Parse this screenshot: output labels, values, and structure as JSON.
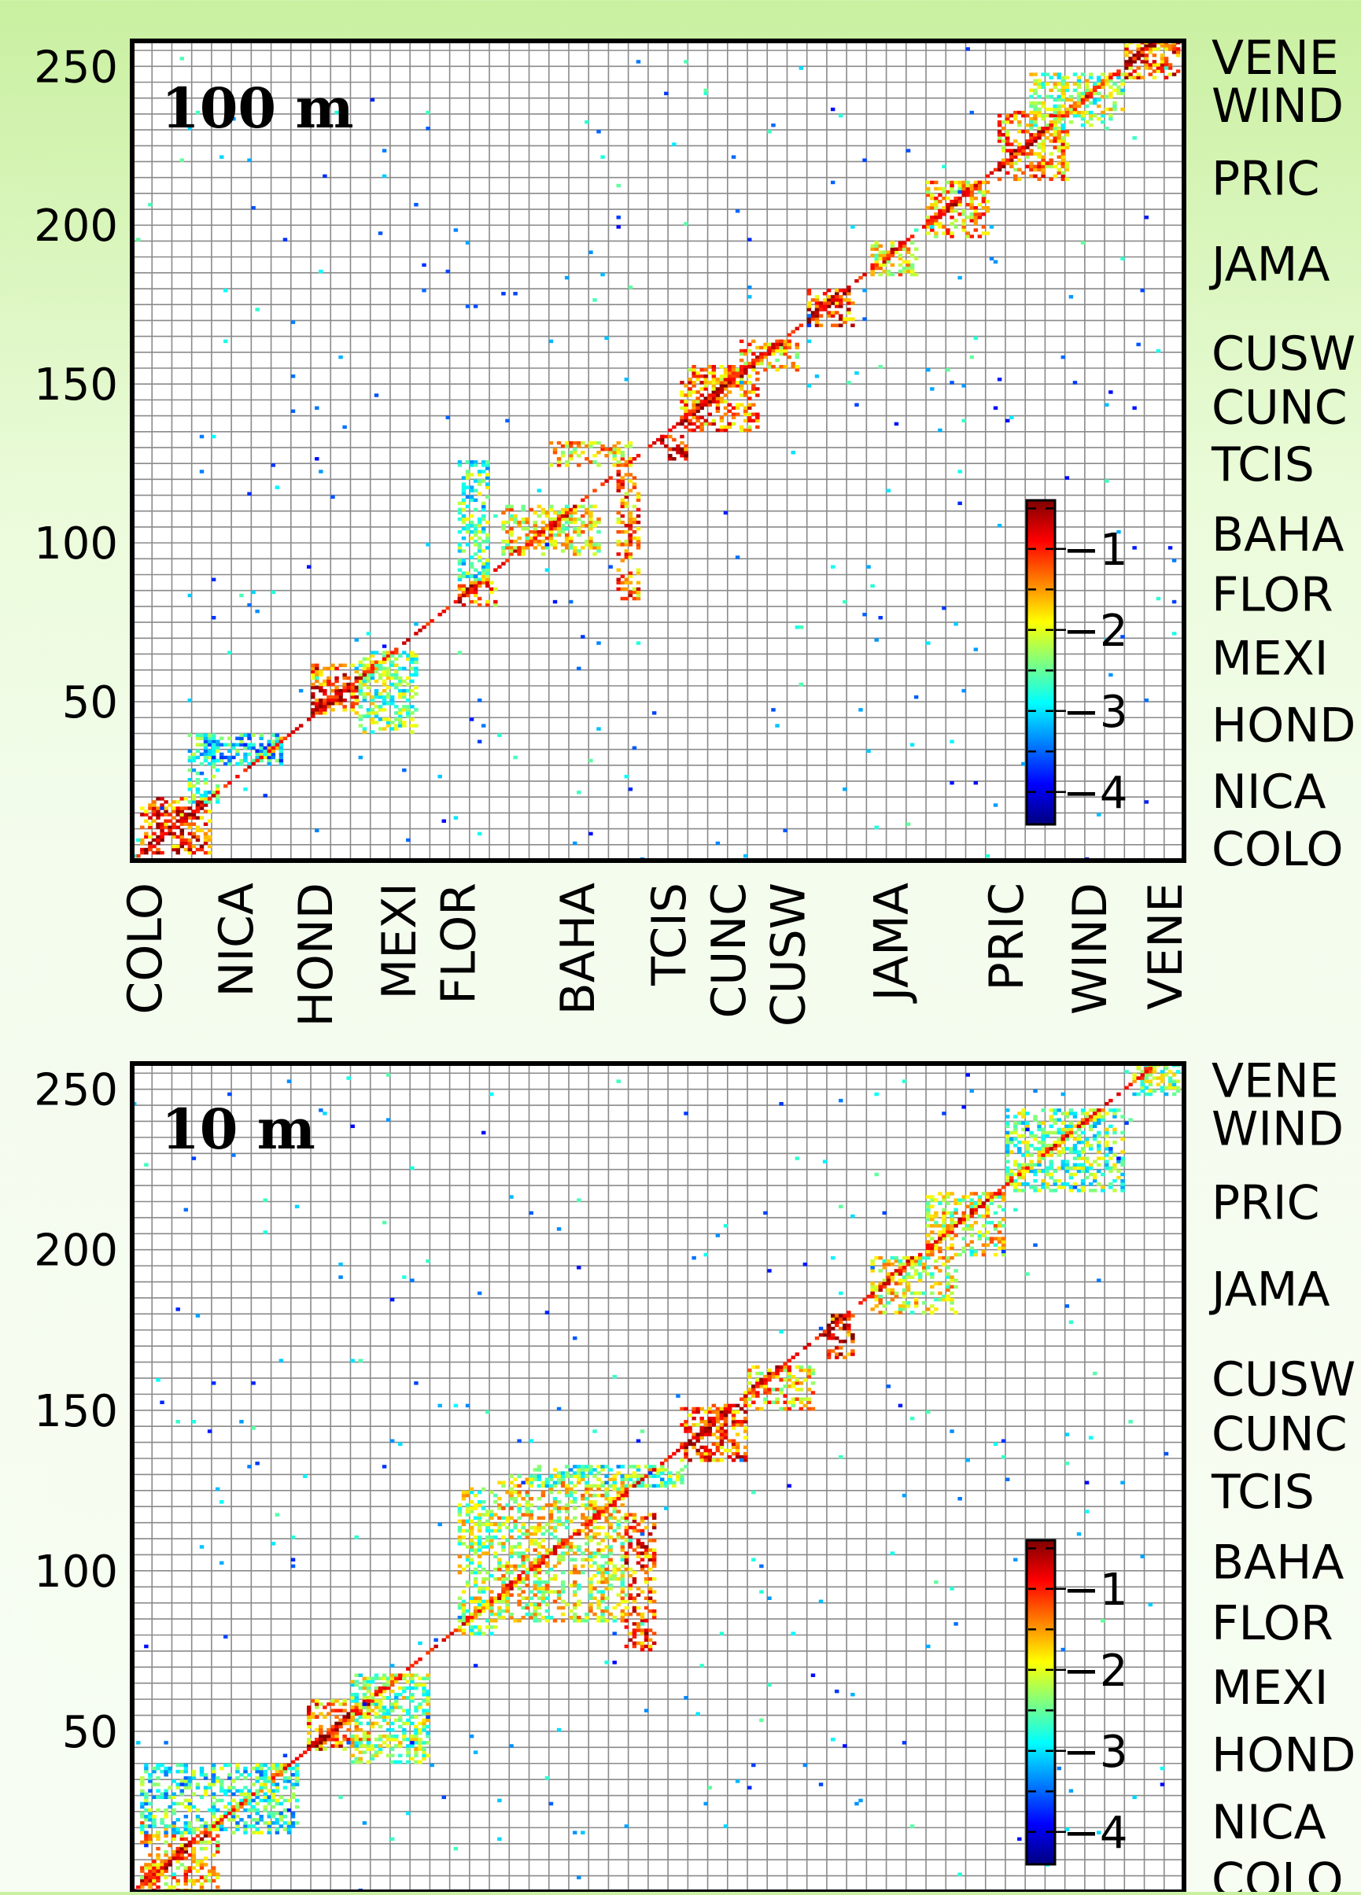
{
  "chart_data": [
    {
      "type": "heatmap",
      "title": "100 m",
      "xlabel": "",
      "ylabel": "",
      "xlim": [
        0,
        265
      ],
      "ylim": [
        0,
        258
      ],
      "yticks": [
        50,
        100,
        150,
        200,
        250
      ],
      "x_regions": [
        {
          "label": "COLO",
          "at": 3
        },
        {
          "label": "NICA",
          "at": 26
        },
        {
          "label": "HOND",
          "at": 46
        },
        {
          "label": "MEXI",
          "at": 67
        },
        {
          "label": "FLOR",
          "at": 82
        },
        {
          "label": "BAHA",
          "at": 112
        },
        {
          "label": "TCIS",
          "at": 135
        },
        {
          "label": "CUNC",
          "at": 150
        },
        {
          "label": "CUSW",
          "at": 165
        },
        {
          "label": "JAMA",
          "at": 191
        },
        {
          "label": "PRIC",
          "at": 220
        },
        {
          "label": "WIND",
          "at": 241
        },
        {
          "label": "VENE",
          "at": 260
        }
      ],
      "y_regions": [
        {
          "label": "VENE",
          "at": 253
        },
        {
          "label": "WIND",
          "at": 238
        },
        {
          "label": "PRIC",
          "at": 215
        },
        {
          "label": "JAMA",
          "at": 188
        },
        {
          "label": "CUSW",
          "at": 160
        },
        {
          "label": "CUNC",
          "at": 143
        },
        {
          "label": "TCIS",
          "at": 125
        },
        {
          "label": "BAHA",
          "at": 103
        },
        {
          "label": "FLOR",
          "at": 84
        },
        {
          "label": "MEXI",
          "at": 64
        },
        {
          "label": "HOND",
          "at": 43
        },
        {
          "label": "NICA",
          "at": 22
        },
        {
          "label": "COLO",
          "at": 4
        }
      ],
      "blocks": [
        {
          "x": [
            2,
            20
          ],
          "y": [
            2,
            20
          ],
          "level": -1.2
        },
        {
          "x": [
            14,
            22
          ],
          "y": [
            18,
            40
          ],
          "level": -2.8
        },
        {
          "x": [
            18,
            38
          ],
          "y": [
            30,
            40
          ],
          "level": -3.0
        },
        {
          "x": [
            45,
            57
          ],
          "y": [
            46,
            62
          ],
          "level": -1.2
        },
        {
          "x": [
            57,
            72
          ],
          "y": [
            40,
            66
          ],
          "level": -2.4
        },
        {
          "x": [
            82,
            92
          ],
          "y": [
            80,
            88
          ],
          "level": -1.5
        },
        {
          "x": [
            82,
            90
          ],
          "y": [
            88,
            126
          ],
          "level": -2.6
        },
        {
          "x": [
            93,
            118
          ],
          "y": [
            96,
            112
          ],
          "level": -1.9
        },
        {
          "x": [
            105,
            126
          ],
          "y": [
            124,
            132
          ],
          "level": -1.8
        },
        {
          "x": [
            122,
            128
          ],
          "y": [
            82,
            122
          ],
          "level": -1.4
        },
        {
          "x": [
            133,
            140
          ],
          "y": [
            126,
            134
          ],
          "level": -1.1
        },
        {
          "x": [
            138,
            158
          ],
          "y": [
            135,
            156
          ],
          "level": -1.4
        },
        {
          "x": [
            153,
            168
          ],
          "y": [
            154,
            164
          ],
          "level": -1.7
        },
        {
          "x": [
            170,
            182
          ],
          "y": [
            168,
            180
          ],
          "level": -1.2
        },
        {
          "x": [
            186,
            198
          ],
          "y": [
            184,
            195
          ],
          "level": -1.9
        },
        {
          "x": [
            200,
            216
          ],
          "y": [
            196,
            214
          ],
          "level": -1.6
        },
        {
          "x": [
            218,
            236
          ],
          "y": [
            214,
            236
          ],
          "level": -1.5
        },
        {
          "x": [
            226,
            250
          ],
          "y": [
            230,
            248
          ],
          "level": -2.3
        },
        {
          "x": [
            250,
            264
          ],
          "y": [
            246,
            258
          ],
          "level": -1.3
        }
      ],
      "colorbar": {
        "ticks": [
          -1,
          -2,
          -3,
          -4
        ],
        "range": [
          -4.4,
          -0.4
        ]
      }
    },
    {
      "type": "heatmap",
      "title": "10 m",
      "xlabel": "",
      "ylabel": "",
      "xlim": [
        0,
        265
      ],
      "ylim": [
        0,
        258
      ],
      "yticks": [
        50,
        100,
        150,
        200,
        250
      ],
      "y_regions": [
        {
          "label": "VENE",
          "at": 253
        },
        {
          "label": "WIND",
          "at": 238
        },
        {
          "label": "PRIC",
          "at": 215
        },
        {
          "label": "JAMA",
          "at": 188
        },
        {
          "label": "CUSW",
          "at": 160
        },
        {
          "label": "CUNC",
          "at": 143
        },
        {
          "label": "TCIS",
          "at": 125
        },
        {
          "label": "BAHA",
          "at": 103
        },
        {
          "label": "FLOR",
          "at": 84
        },
        {
          "label": "MEXI",
          "at": 64
        },
        {
          "label": "HOND",
          "at": 43
        },
        {
          "label": "NICA",
          "at": 22
        },
        {
          "label": "COLO",
          "at": 4
        }
      ],
      "blocks": [
        {
          "x": [
            2,
            22
          ],
          "y": [
            0,
            22
          ],
          "level": -1.6
        },
        {
          "x": [
            2,
            42
          ],
          "y": [
            18,
            40
          ],
          "level": -2.7
        },
        {
          "x": [
            44,
            60
          ],
          "y": [
            44,
            60
          ],
          "level": -1.4
        },
        {
          "x": [
            55,
            75
          ],
          "y": [
            40,
            68
          ],
          "level": -2.3
        },
        {
          "x": [
            82,
            92
          ],
          "y": [
            80,
            126
          ],
          "level": -2.2
        },
        {
          "x": [
            92,
            125
          ],
          "y": [
            84,
            130
          ],
          "level": -2.0
        },
        {
          "x": [
            124,
            132
          ],
          "y": [
            75,
            118
          ],
          "level": -1.2
        },
        {
          "x": [
            100,
            140
          ],
          "y": [
            126,
            133
          ],
          "level": -2.6
        },
        {
          "x": [
            138,
            155
          ],
          "y": [
            134,
            152
          ],
          "level": -1.3
        },
        {
          "x": [
            154,
            172
          ],
          "y": [
            150,
            164
          ],
          "level": -1.7
        },
        {
          "x": [
            174,
            182
          ],
          "y": [
            166,
            180
          ],
          "level": -1.1
        },
        {
          "x": [
            186,
            208
          ],
          "y": [
            180,
            198
          ],
          "level": -2.0
        },
        {
          "x": [
            200,
            220
          ],
          "y": [
            198,
            218
          ],
          "level": -2.0
        },
        {
          "x": [
            220,
            250
          ],
          "y": [
            218,
            244
          ],
          "level": -2.5
        },
        {
          "x": [
            252,
            264
          ],
          "y": [
            248,
            258
          ],
          "level": -2.4
        }
      ],
      "colorbar": {
        "ticks": [
          -1,
          -2,
          -3,
          -4
        ],
        "range": [
          -4.4,
          -0.4
        ]
      }
    }
  ]
}
